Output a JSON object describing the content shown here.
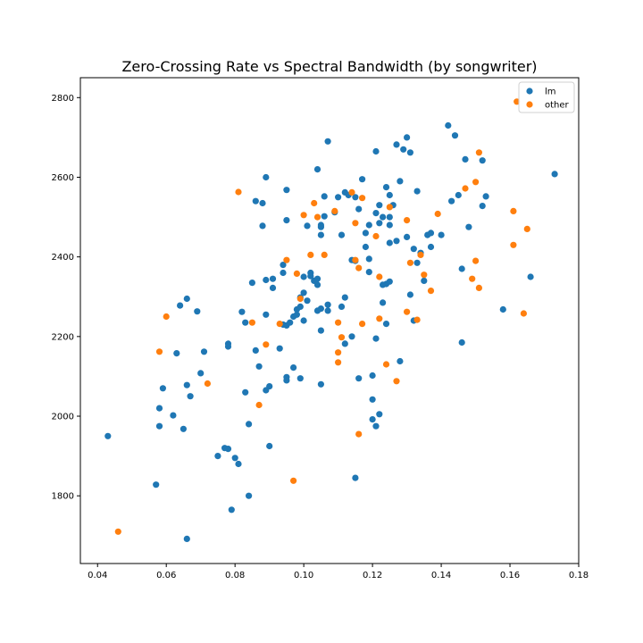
{
  "chart_data": {
    "type": "scatter",
    "title": "Zero-Crossing Rate vs Spectral Bandwidth (by songwriter)",
    "xlabel": "",
    "ylabel": "",
    "xlim": [
      0.035,
      0.18
    ],
    "ylim": [
      1630,
      2850
    ],
    "x_ticks": [
      0.04,
      0.06,
      0.08,
      0.1,
      0.12,
      0.14,
      0.16,
      0.18
    ],
    "x_tick_labels": [
      "0.04",
      "0.06",
      "0.08",
      "0.10",
      "0.12",
      "0.14",
      "0.16",
      "0.18"
    ],
    "y_ticks": [
      1800,
      2000,
      2200,
      2400,
      2600,
      2800
    ],
    "y_tick_labels": [
      "1800",
      "2000",
      "2200",
      "2400",
      "2600",
      "2800"
    ],
    "grid": false,
    "legend_position": "top-right",
    "series": [
      {
        "name": "lm",
        "color": "#1f77b4",
        "points": [
          [
            0.043,
            1950
          ],
          [
            0.057,
            1828
          ],
          [
            0.058,
            1975
          ],
          [
            0.058,
            2020
          ],
          [
            0.059,
            2070
          ],
          [
            0.062,
            2002
          ],
          [
            0.063,
            2158
          ],
          [
            0.064,
            2278
          ],
          [
            0.065,
            1968
          ],
          [
            0.066,
            1692
          ],
          [
            0.066,
            2295
          ],
          [
            0.066,
            2078
          ],
          [
            0.067,
            2050
          ],
          [
            0.069,
            2263
          ],
          [
            0.07,
            2108
          ],
          [
            0.071,
            2162
          ],
          [
            0.075,
            1900
          ],
          [
            0.077,
            1920
          ],
          [
            0.078,
            1918
          ],
          [
            0.078,
            2175
          ],
          [
            0.078,
            2182
          ],
          [
            0.079,
            1765
          ],
          [
            0.08,
            1895
          ],
          [
            0.081,
            1880
          ],
          [
            0.082,
            2262
          ],
          [
            0.083,
            2235
          ],
          [
            0.083,
            2060
          ],
          [
            0.084,
            1980
          ],
          [
            0.084,
            1800
          ],
          [
            0.085,
            2335
          ],
          [
            0.086,
            2540
          ],
          [
            0.086,
            2165
          ],
          [
            0.087,
            2125
          ],
          [
            0.088,
            2478
          ],
          [
            0.088,
            2535
          ],
          [
            0.089,
            2600
          ],
          [
            0.089,
            2255
          ],
          [
            0.089,
            2342
          ],
          [
            0.089,
            2065
          ],
          [
            0.09,
            2075
          ],
          [
            0.09,
            1925
          ],
          [
            0.091,
            2345
          ],
          [
            0.091,
            2322
          ],
          [
            0.093,
            2170
          ],
          [
            0.094,
            2230
          ],
          [
            0.094,
            2380
          ],
          [
            0.094,
            2360
          ],
          [
            0.095,
            2098
          ],
          [
            0.095,
            2090
          ],
          [
            0.095,
            2568
          ],
          [
            0.095,
            2492
          ],
          [
            0.095,
            2228
          ],
          [
            0.096,
            2235
          ],
          [
            0.097,
            2122
          ],
          [
            0.097,
            2250
          ],
          [
            0.098,
            2255
          ],
          [
            0.098,
            2268
          ],
          [
            0.099,
            2095
          ],
          [
            0.099,
            2298
          ],
          [
            0.099,
            2275
          ],
          [
            0.1,
            2310
          ],
          [
            0.1,
            2240
          ],
          [
            0.1,
            2350
          ],
          [
            0.101,
            2290
          ],
          [
            0.101,
            2478
          ],
          [
            0.102,
            2360
          ],
          [
            0.102,
            2352
          ],
          [
            0.103,
            2340
          ],
          [
            0.104,
            2620
          ],
          [
            0.104,
            2330
          ],
          [
            0.104,
            2345
          ],
          [
            0.104,
            2265
          ],
          [
            0.105,
            2270
          ],
          [
            0.105,
            2215
          ],
          [
            0.105,
            2080
          ],
          [
            0.105,
            2455
          ],
          [
            0.105,
            2475
          ],
          [
            0.105,
            2480
          ],
          [
            0.106,
            2502
          ],
          [
            0.106,
            2552
          ],
          [
            0.107,
            2280
          ],
          [
            0.107,
            2265
          ],
          [
            0.107,
            2690
          ],
          [
            0.109,
            2512
          ],
          [
            0.11,
            2550
          ],
          [
            0.111,
            2455
          ],
          [
            0.111,
            2275
          ],
          [
            0.112,
            2562
          ],
          [
            0.112,
            2182
          ],
          [
            0.112,
            2298
          ],
          [
            0.113,
            2555
          ],
          [
            0.114,
            2200
          ],
          [
            0.114,
            2392
          ],
          [
            0.115,
            1845
          ],
          [
            0.115,
            2550
          ],
          [
            0.115,
            2390
          ],
          [
            0.116,
            2520
          ],
          [
            0.116,
            2095
          ],
          [
            0.117,
            2595
          ],
          [
            0.118,
            2460
          ],
          [
            0.118,
            2425
          ],
          [
            0.119,
            2362
          ],
          [
            0.119,
            2395
          ],
          [
            0.119,
            2480
          ],
          [
            0.12,
            1992
          ],
          [
            0.12,
            2042
          ],
          [
            0.12,
            2102
          ],
          [
            0.121,
            2665
          ],
          [
            0.121,
            1975
          ],
          [
            0.121,
            2195
          ],
          [
            0.121,
            2510
          ],
          [
            0.122,
            2005
          ],
          [
            0.122,
            2485
          ],
          [
            0.122,
            2530
          ],
          [
            0.123,
            2500
          ],
          [
            0.123,
            2285
          ],
          [
            0.123,
            2330
          ],
          [
            0.124,
            2332
          ],
          [
            0.124,
            2575
          ],
          [
            0.124,
            2232
          ],
          [
            0.125,
            2555
          ],
          [
            0.125,
            2435
          ],
          [
            0.125,
            2338
          ],
          [
            0.125,
            2500
          ],
          [
            0.125,
            2480
          ],
          [
            0.126,
            2530
          ],
          [
            0.127,
            2682
          ],
          [
            0.127,
            2440
          ],
          [
            0.128,
            2138
          ],
          [
            0.128,
            2590
          ],
          [
            0.129,
            2670
          ],
          [
            0.13,
            2700
          ],
          [
            0.13,
            2450
          ],
          [
            0.131,
            2662
          ],
          [
            0.131,
            2305
          ],
          [
            0.132,
            2420
          ],
          [
            0.132,
            2240
          ],
          [
            0.133,
            2385
          ],
          [
            0.133,
            2565
          ],
          [
            0.134,
            2410
          ],
          [
            0.135,
            2340
          ],
          [
            0.136,
            2455
          ],
          [
            0.137,
            2460
          ],
          [
            0.137,
            2425
          ],
          [
            0.14,
            2455
          ],
          [
            0.142,
            2730
          ],
          [
            0.143,
            2540
          ],
          [
            0.144,
            2705
          ],
          [
            0.145,
            2555
          ],
          [
            0.146,
            2370
          ],
          [
            0.146,
            2185
          ],
          [
            0.147,
            2645
          ],
          [
            0.148,
            2475
          ],
          [
            0.152,
            2528
          ],
          [
            0.152,
            2642
          ],
          [
            0.153,
            2552
          ],
          [
            0.158,
            2268
          ],
          [
            0.166,
            2350
          ],
          [
            0.173,
            2608
          ]
        ]
      },
      {
        "name": "other",
        "color": "#ff7f0e",
        "points": [
          [
            0.046,
            1710
          ],
          [
            0.058,
            2162
          ],
          [
            0.06,
            2250
          ],
          [
            0.072,
            2082
          ],
          [
            0.081,
            2563
          ],
          [
            0.085,
            2235
          ],
          [
            0.087,
            2028
          ],
          [
            0.089,
            2180
          ],
          [
            0.093,
            2232
          ],
          [
            0.095,
            2392
          ],
          [
            0.097,
            1838
          ],
          [
            0.098,
            2358
          ],
          [
            0.099,
            2295
          ],
          [
            0.1,
            2505
          ],
          [
            0.102,
            2405
          ],
          [
            0.103,
            2535
          ],
          [
            0.104,
            2500
          ],
          [
            0.106,
            2405
          ],
          [
            0.109,
            2515
          ],
          [
            0.11,
            2160
          ],
          [
            0.11,
            2135
          ],
          [
            0.11,
            2235
          ],
          [
            0.111,
            2198
          ],
          [
            0.114,
            2562
          ],
          [
            0.115,
            2392
          ],
          [
            0.115,
            2485
          ],
          [
            0.116,
            1955
          ],
          [
            0.116,
            2372
          ],
          [
            0.117,
            2232
          ],
          [
            0.117,
            2548
          ],
          [
            0.121,
            2452
          ],
          [
            0.122,
            2350
          ],
          [
            0.122,
            2245
          ],
          [
            0.124,
            2130
          ],
          [
            0.125,
            2525
          ],
          [
            0.127,
            2088
          ],
          [
            0.13,
            2262
          ],
          [
            0.13,
            2492
          ],
          [
            0.131,
            2385
          ],
          [
            0.133,
            2242
          ],
          [
            0.134,
            2405
          ],
          [
            0.135,
            2355
          ],
          [
            0.137,
            2315
          ],
          [
            0.139,
            2508
          ],
          [
            0.147,
            2572
          ],
          [
            0.149,
            2345
          ],
          [
            0.15,
            2390
          ],
          [
            0.15,
            2588
          ],
          [
            0.151,
            2662
          ],
          [
            0.151,
            2322
          ],
          [
            0.161,
            2515
          ],
          [
            0.161,
            2430
          ],
          [
            0.162,
            2790
          ],
          [
            0.164,
            2258
          ],
          [
            0.165,
            2470
          ]
        ]
      }
    ]
  }
}
